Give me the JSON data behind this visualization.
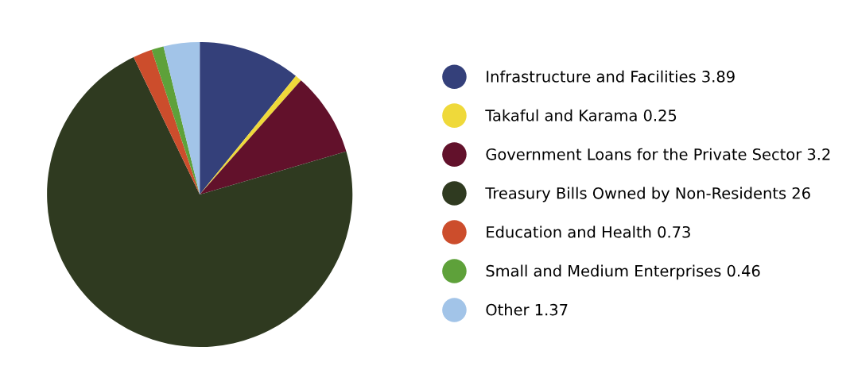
{
  "chart_data": {
    "type": "pie",
    "categories": [
      "Infrastructure and Facilities 3.89",
      "Takaful and Karama 0.25",
      "Government Loans for the Private Sector 3.2",
      "Treasury Bills Owned by Non-Residents 26",
      "Education and Health 0.73",
      "Small and Medium Enterprises 0.46",
      "Other 1.37"
    ],
    "values": [
      3.89,
      0.25,
      3.2,
      26,
      0.73,
      0.46,
      1.37
    ],
    "colors": [
      "#34407a",
      "#efd93a",
      "#62112b",
      "#2f3a20",
      "#cc4d2c",
      "#5ea13a",
      "#a2c4e8"
    ],
    "legend": "right"
  }
}
